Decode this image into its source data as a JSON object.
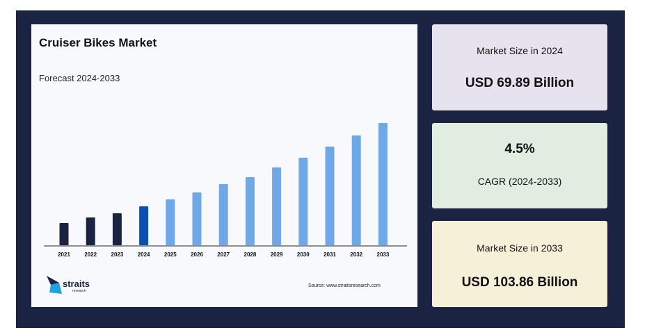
{
  "chart_data": {
    "type": "bar",
    "title": "Cruiser Bikes Market",
    "subtitle": "Forecast 2024-2033",
    "categories": [
      "2021",
      "2022",
      "2023",
      "2024",
      "2025",
      "2026",
      "2027",
      "2028",
      "2029",
      "2030",
      "2031",
      "2032",
      "2033"
    ],
    "values": [
      16,
      20,
      23,
      28,
      33,
      38,
      44,
      49,
      56,
      63,
      71,
      79,
      88
    ],
    "bar_colors": [
      "#1a2442",
      "#1a2442",
      "#1a2442",
      "#0d4fb0",
      "#6fa8e6",
      "#6fa8e6",
      "#6fa8e6",
      "#6fa8e6",
      "#6fa8e6",
      "#6fa8e6",
      "#6fa8e6",
      "#6fa8e6",
      "#6fa8e6"
    ],
    "ylim": [
      0,
      100
    ],
    "grid": false,
    "xlabel": "",
    "ylabel": ""
  },
  "logo": {
    "name": "straits",
    "sub": "research"
  },
  "source": "Source: www.straitsresearch.com",
  "cards": [
    {
      "label": "Market Size in 2024",
      "value": "USD 69.89 Billion",
      "color": "#e6e3ef"
    },
    {
      "label": "CAGR (2024-2033)",
      "value": "4.5%",
      "color": "#e1ede0"
    },
    {
      "label": "Market Size in 2033",
      "value": "USD 103.86 Billion",
      "color": "#f6f0d9"
    }
  ]
}
